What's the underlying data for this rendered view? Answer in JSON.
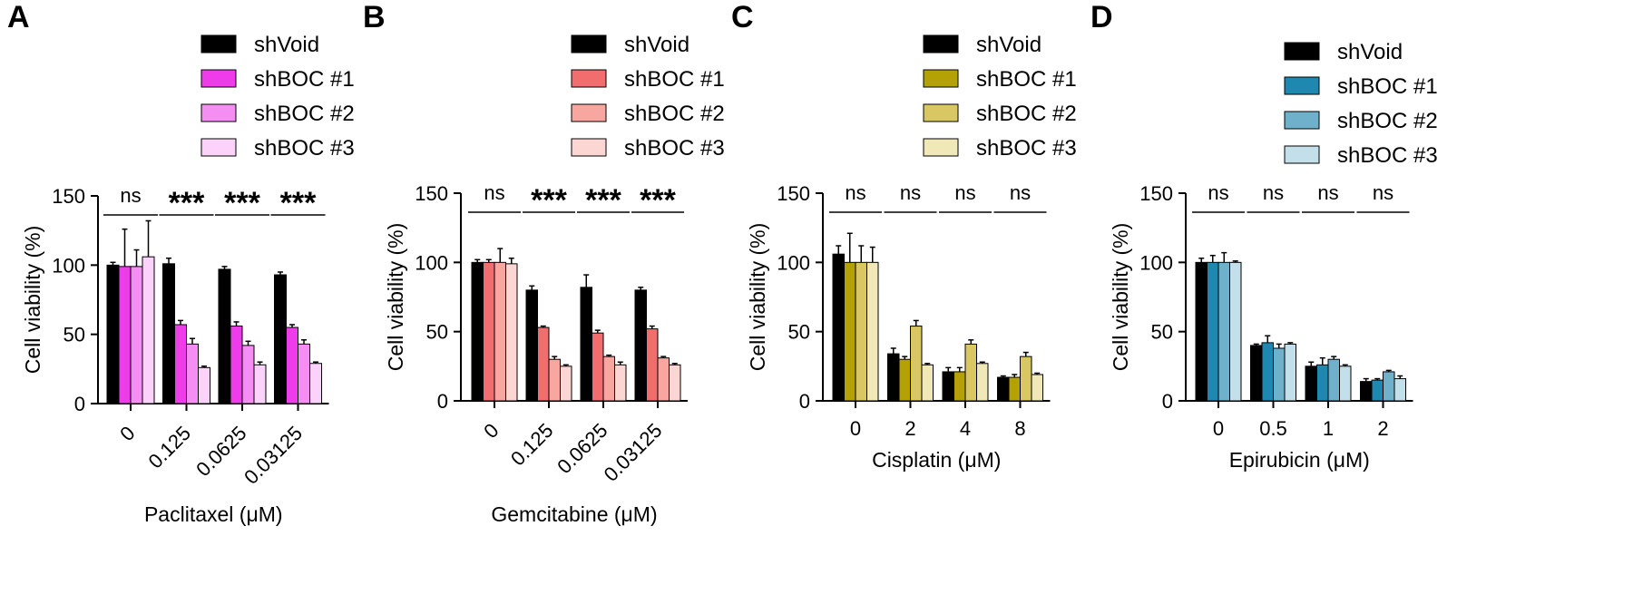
{
  "series_names": [
    "shVoid",
    "shBOC #1",
    "shBOC #2",
    "shBOC #3"
  ],
  "chart_data": [
    {
      "type": "bar",
      "panel": "A",
      "title": "",
      "xlabel": "Paclitaxel (μM)",
      "ylabel": "Cell viability (%)",
      "ylim": [
        0,
        150
      ],
      "yticks": [
        0,
        50,
        100,
        150
      ],
      "categories": [
        "0",
        "0.125",
        "0.0625",
        "0.03125"
      ],
      "rotated_ticks": true,
      "significance": [
        "ns",
        "***",
        "***",
        "***"
      ],
      "legend": [
        "shVoid",
        "shBOC #1",
        "shBOC #2",
        "shBOC #3"
      ],
      "colors": [
        "#000000",
        "#ee3cea",
        "#f48ef2",
        "#fbd3fa"
      ],
      "series": [
        {
          "name": "shVoid",
          "values": [
            100,
            101,
            97,
            93
          ],
          "errors": [
            2,
            4,
            2,
            2
          ]
        },
        {
          "name": "shBOC #1",
          "values": [
            99,
            57,
            56,
            55
          ],
          "errors": [
            27,
            3,
            3,
            2
          ]
        },
        {
          "name": "shBOC #2",
          "values": [
            99,
            43,
            42,
            43
          ],
          "errors": [
            12,
            4,
            3,
            3
          ]
        },
        {
          "name": "shBOC #3",
          "values": [
            106,
            26,
            28,
            29
          ],
          "errors": [
            26,
            1,
            2,
            1
          ]
        }
      ]
    },
    {
      "type": "bar",
      "panel": "B",
      "title": "",
      "xlabel": "Gemcitabine (μM)",
      "ylabel": "Cell viability (%)",
      "ylim": [
        0,
        150
      ],
      "yticks": [
        0,
        50,
        100,
        150
      ],
      "categories": [
        "0",
        "0.125",
        "0.0625",
        "0.03125"
      ],
      "rotated_ticks": true,
      "significance": [
        "ns",
        "***",
        "***",
        "***"
      ],
      "legend": [
        "shVoid",
        "shBOC #1",
        "shBOC #2",
        "shBOC #3"
      ],
      "colors": [
        "#000000",
        "#f26d6d",
        "#f7a6a0",
        "#fcd6d3"
      ],
      "series": [
        {
          "name": "shVoid",
          "values": [
            100,
            80,
            82,
            80
          ],
          "errors": [
            2,
            3,
            9,
            2
          ]
        },
        {
          "name": "shBOC #1",
          "values": [
            100,
            53,
            49,
            52
          ],
          "errors": [
            2,
            1,
            2,
            2
          ]
        },
        {
          "name": "shBOC #2",
          "values": [
            100,
            30,
            32,
            31
          ],
          "errors": [
            10,
            2,
            1,
            1
          ]
        },
        {
          "name": "shBOC #3",
          "values": [
            99,
            25,
            26,
            26
          ],
          "errors": [
            4,
            1,
            2,
            1
          ]
        }
      ]
    },
    {
      "type": "bar",
      "panel": "C",
      "title": "",
      "xlabel": "Cisplatin (μM)",
      "ylabel": "Cell viability (%)",
      "ylim": [
        0,
        150
      ],
      "yticks": [
        0,
        50,
        100,
        150
      ],
      "categories": [
        "0",
        "2",
        "4",
        "8"
      ],
      "rotated_ticks": false,
      "significance": [
        "ns",
        "ns",
        "ns",
        "ns"
      ],
      "legend": [
        "shVoid",
        "shBOC #1",
        "shBOC #2",
        "shBOC #3"
      ],
      "colors": [
        "#000000",
        "#b4a106",
        "#d8c763",
        "#f0e8b6"
      ],
      "series": [
        {
          "name": "shVoid",
          "values": [
            106,
            34,
            21,
            17
          ],
          "errors": [
            6,
            4,
            3,
            1
          ]
        },
        {
          "name": "shBOC #1",
          "values": [
            100,
            30,
            21,
            17
          ],
          "errors": [
            21,
            2,
            3,
            2
          ]
        },
        {
          "name": "shBOC #2",
          "values": [
            100,
            54,
            41,
            32
          ],
          "errors": [
            12,
            4,
            3,
            3
          ]
        },
        {
          "name": "shBOC #3",
          "values": [
            100,
            26,
            27,
            19
          ],
          "errors": [
            11,
            1,
            1,
            1
          ]
        }
      ]
    },
    {
      "type": "bar",
      "panel": "D",
      "title": "",
      "xlabel": "Epirubicin (μM)",
      "ylabel": "Cell viability (%)",
      "ylim": [
        0,
        150
      ],
      "yticks": [
        0,
        50,
        100,
        150
      ],
      "categories": [
        "0",
        "0.5",
        "1",
        "2"
      ],
      "rotated_ticks": false,
      "significance": [
        "ns",
        "ns",
        "ns",
        "ns"
      ],
      "legend": [
        "shVoid",
        "shBOC #1",
        "shBOC #2",
        "shBOC #3"
      ],
      "colors": [
        "#000000",
        "#1f88b0",
        "#6fb0cb",
        "#c3e0ea"
      ],
      "series": [
        {
          "name": "shVoid",
          "values": [
            100,
            40,
            25,
            14
          ],
          "errors": [
            3,
            1,
            3,
            2
          ]
        },
        {
          "name": "shBOC #1",
          "values": [
            100,
            42,
            26,
            15
          ],
          "errors": [
            5,
            5,
            5,
            1
          ]
        },
        {
          "name": "shBOC #2",
          "values": [
            100,
            38,
            30,
            21
          ],
          "errors": [
            7,
            3,
            2,
            1
          ]
        },
        {
          "name": "shBOC #3",
          "values": [
            100,
            41,
            25,
            16
          ],
          "errors": [
            1,
            1,
            1,
            2
          ]
        }
      ]
    }
  ]
}
